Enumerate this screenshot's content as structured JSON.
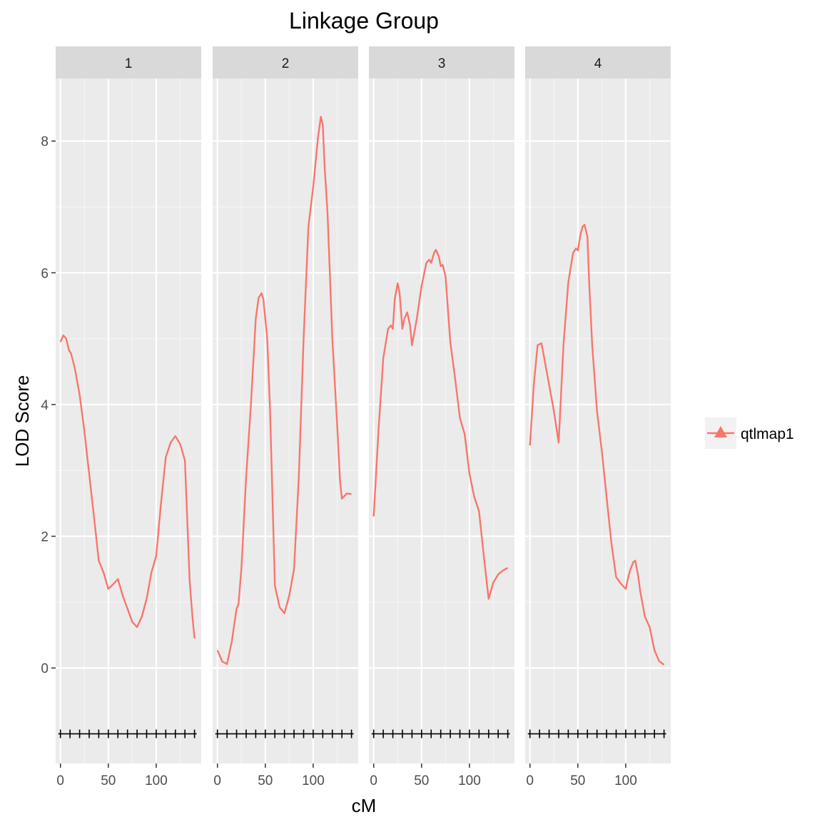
{
  "chart_data": {
    "type": "line",
    "title": "Linkage Group",
    "xlabel": "cM",
    "ylabel": "LOD Score",
    "ylim": [
      -1.45,
      8.95
    ],
    "xlim": [
      -5,
      147
    ],
    "y_ticks": [
      0,
      2,
      4,
      6,
      8
    ],
    "x_ticks": [
      0,
      50,
      100
    ],
    "grid": true,
    "legend_position": "right",
    "legend": [
      {
        "name": "qtlmap1",
        "color": "#F8766D",
        "symbol": "triangle"
      }
    ],
    "marker_y": -1,
    "panels": [
      {
        "label": "1",
        "markers": [
          0,
          10,
          20,
          30,
          40,
          50,
          60,
          70,
          80,
          90,
          100,
          110,
          120,
          130,
          140
        ],
        "series": [
          {
            "name": "qtlmap1",
            "x": [
              0,
              3,
              6,
              9,
              11,
              15,
              20,
              25,
              28,
              30,
              35,
              40,
              45,
              50,
              55,
              60,
              65,
              70,
              75,
              80,
              85,
              90,
              95,
              100,
              105,
              110,
              115,
              120,
              125,
              130,
              135,
              138,
              140
            ],
            "y": [
              4.95,
              5.05,
              5.0,
              4.82,
              4.78,
              4.55,
              4.15,
              3.6,
              3.2,
              2.95,
              2.3,
              1.63,
              1.45,
              1.2,
              1.27,
              1.35,
              1.1,
              0.9,
              0.7,
              0.62,
              0.78,
              1.05,
              1.45,
              1.7,
              2.5,
              3.2,
              3.42,
              3.52,
              3.4,
              3.15,
              1.3,
              0.75,
              0.45
            ]
          }
        ]
      },
      {
        "label": "2",
        "markers": [
          0,
          10,
          20,
          30,
          40,
          50,
          60,
          70,
          80,
          90,
          100,
          110,
          120,
          130,
          140
        ],
        "series": [
          {
            "name": "qtlmap1",
            "x": [
              0,
              5,
              10,
              15,
              20,
              22,
              25,
              30,
              35,
              40,
              43,
              46,
              48,
              50,
              52,
              55,
              60,
              65,
              70,
              75,
              80,
              85,
              90,
              95,
              100,
              105,
              108,
              110,
              112,
              115,
              120,
              125,
              128,
              130,
              135,
              140
            ],
            "y": [
              0.27,
              0.1,
              0.06,
              0.4,
              0.9,
              0.97,
              1.5,
              2.9,
              4.0,
              5.3,
              5.62,
              5.69,
              5.6,
              5.3,
              5.0,
              3.9,
              1.25,
              0.92,
              0.83,
              1.1,
              1.5,
              2.9,
              5.0,
              6.7,
              7.3,
              8.05,
              8.37,
              8.25,
              7.6,
              6.9,
              5.0,
              3.7,
              2.85,
              2.57,
              2.65,
              2.64
            ]
          }
        ]
      },
      {
        "label": "3",
        "markers": [
          0,
          10,
          20,
          30,
          40,
          50,
          60,
          70,
          80,
          90,
          100,
          110,
          120,
          130,
          140
        ],
        "series": [
          {
            "name": "qtlmap1",
            "x": [
              0,
              5,
              10,
              15,
              18,
              20,
              22,
              25,
              27,
              30,
              32,
              35,
              38,
              40,
              45,
              50,
              55,
              58,
              60,
              63,
              65,
              68,
              70,
              72,
              75,
              80,
              85,
              90,
              95,
              100,
              105,
              110,
              115,
              120,
              125,
              130,
              135,
              140
            ],
            "y": [
              2.3,
              3.6,
              4.7,
              5.15,
              5.2,
              5.15,
              5.6,
              5.84,
              5.7,
              5.15,
              5.3,
              5.4,
              5.2,
              4.9,
              5.3,
              5.8,
              6.15,
              6.2,
              6.15,
              6.3,
              6.35,
              6.25,
              6.1,
              6.12,
              5.95,
              4.95,
              4.4,
              3.8,
              3.55,
              2.95,
              2.6,
              2.38,
              1.7,
              1.05,
              1.3,
              1.42,
              1.48,
              1.52
            ]
          }
        ]
      },
      {
        "label": "4",
        "markers": [
          0,
          10,
          20,
          30,
          40,
          50,
          60,
          70,
          80,
          90,
          100,
          110,
          120,
          130,
          140
        ],
        "series": [
          {
            "name": "qtlmap1",
            "x": [
              0,
              4,
              8,
              12,
              15,
              20,
              25,
              30,
              35,
              40,
              45,
              48,
              50,
              53,
              55,
              57,
              60,
              62,
              65,
              70,
              75,
              80,
              85,
              90,
              95,
              100,
              103,
              105,
              108,
              110,
              113,
              115,
              120,
              125,
              130,
              135,
              140
            ],
            "y": [
              3.38,
              4.3,
              4.9,
              4.93,
              4.7,
              4.3,
              3.9,
              3.42,
              4.9,
              5.85,
              6.3,
              6.37,
              6.34,
              6.6,
              6.7,
              6.73,
              6.55,
              5.8,
              4.9,
              3.9,
              3.3,
              2.6,
              1.9,
              1.38,
              1.28,
              1.2,
              1.4,
              1.5,
              1.61,
              1.63,
              1.4,
              1.18,
              0.78,
              0.62,
              0.27,
              0.1,
              0.05
            ]
          }
        ]
      }
    ]
  },
  "colors": {
    "series": "#F8766D",
    "panel_bg": "#EBEBEB",
    "strip_bg": "#D9D9D9",
    "grid_major": "#FFFFFF",
    "marker": "#000000"
  }
}
